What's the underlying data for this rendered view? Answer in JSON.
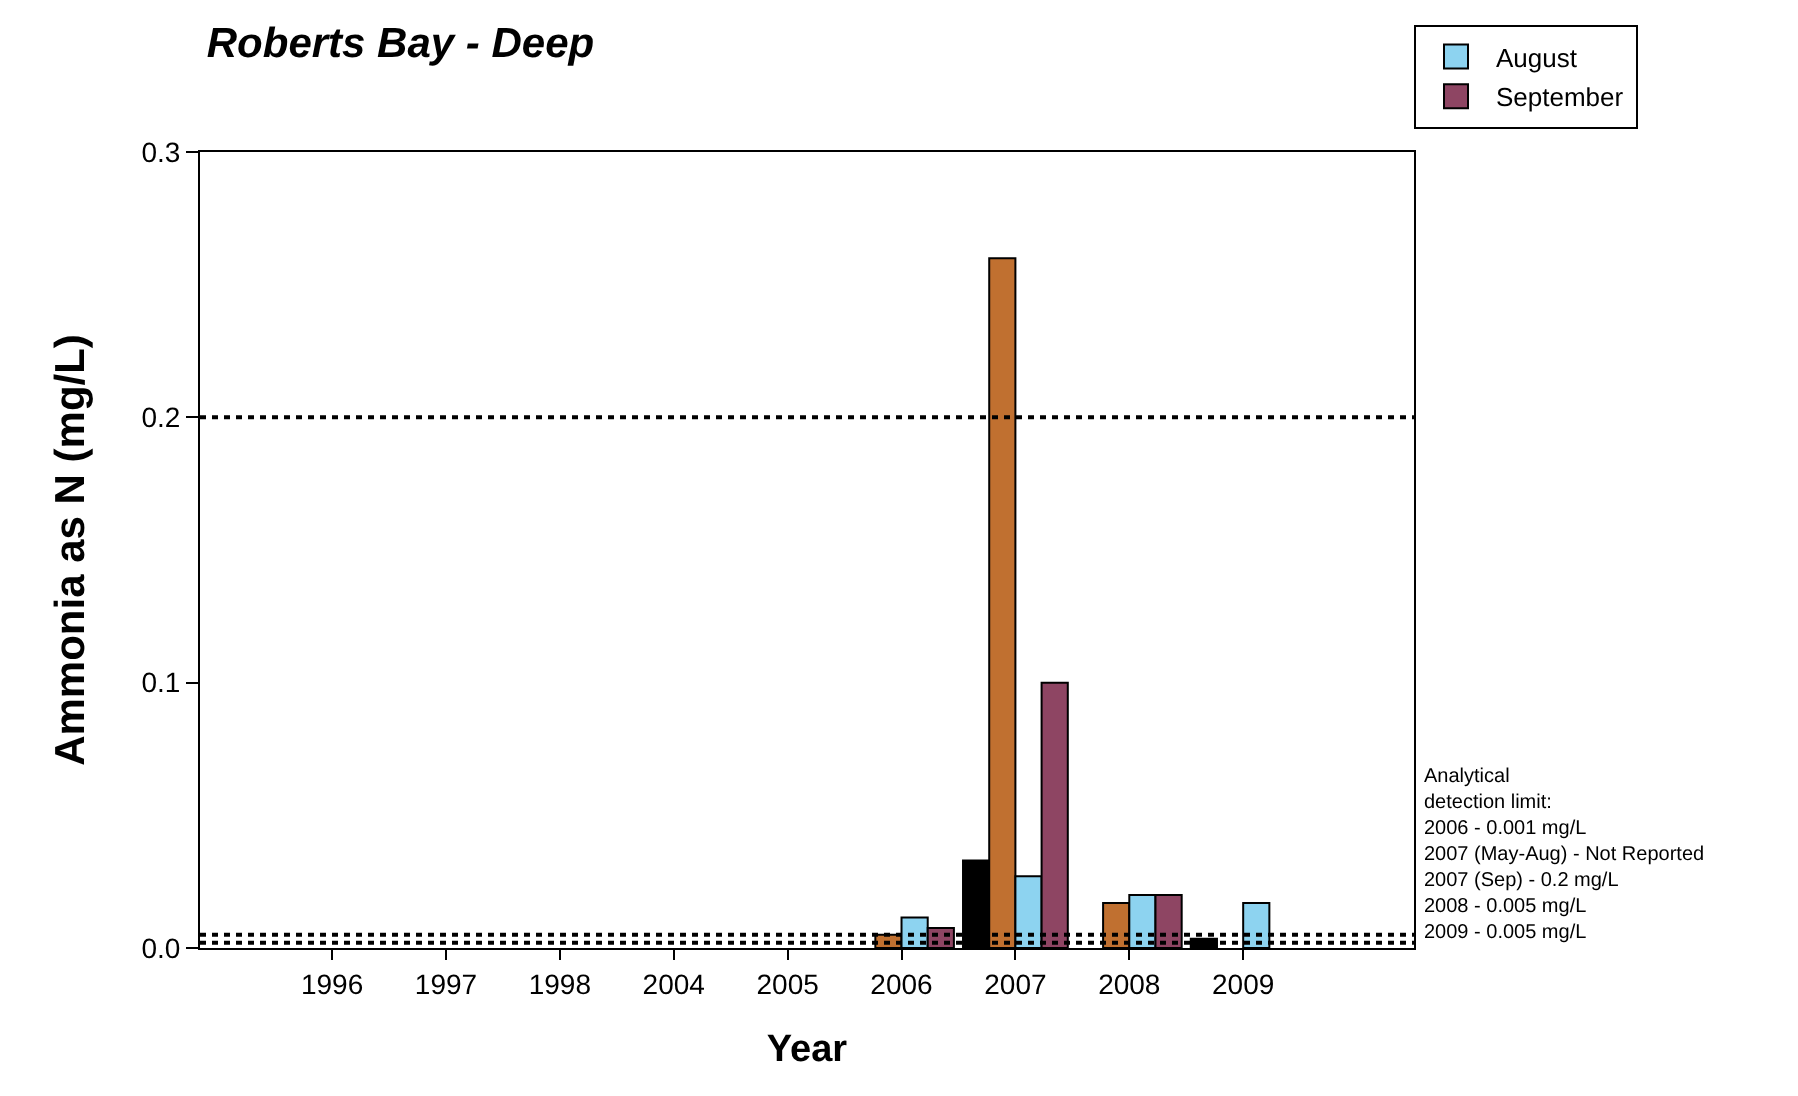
{
  "chart_data": {
    "type": "bar",
    "title": "Roberts Bay - Deep",
    "xlabel": "Year",
    "ylabel": "Ammonia as N (mg/L)",
    "categories": [
      "1996",
      "1997",
      "1998",
      "2004",
      "2005",
      "2006",
      "2007",
      "2008",
      "2009"
    ],
    "series": [
      {
        "color": "#000000",
        "values": [
          null,
          null,
          null,
          null,
          null,
          null,
          0.033,
          null,
          0.0035
        ]
      },
      {
        "color": "#c07030",
        "values": [
          null,
          null,
          null,
          null,
          null,
          0.005,
          0.26,
          0.017,
          null
        ]
      },
      {
        "name": "August",
        "color": "#8dd3f0",
        "values": [
          null,
          null,
          null,
          null,
          null,
          0.0115,
          0.027,
          0.02,
          0.017
        ]
      },
      {
        "name": "September",
        "color": "#8e4563",
        "values": [
          null,
          null,
          null,
          null,
          null,
          0.0075,
          0.1,
          0.02,
          null
        ]
      }
    ],
    "ylim": [
      0,
      0.3
    ],
    "yticks": [
      {
        "value": 0,
        "label": "0.0"
      },
      0.1,
      0.2,
      0.3
    ],
    "ref_lines": [
      {
        "axis": "y",
        "value": 0.2,
        "line_style": "dotted"
      },
      {
        "axis": "y",
        "value": 0.005,
        "line_style": "dotted"
      },
      {
        "axis": "y",
        "value": 0.002,
        "line_style": "dotted"
      }
    ],
    "annotations": [
      "Analytical\ndetection limit:\n2006 - 0.001 mg/L\n2007 (May-Aug) - Not Reported\n2007 (Sep) - 0.2 mg/L\n2008 - 0.005 mg/L\n2009 - 0.005 mg/L"
    ],
    "grid": false,
    "legend": "top right"
  }
}
